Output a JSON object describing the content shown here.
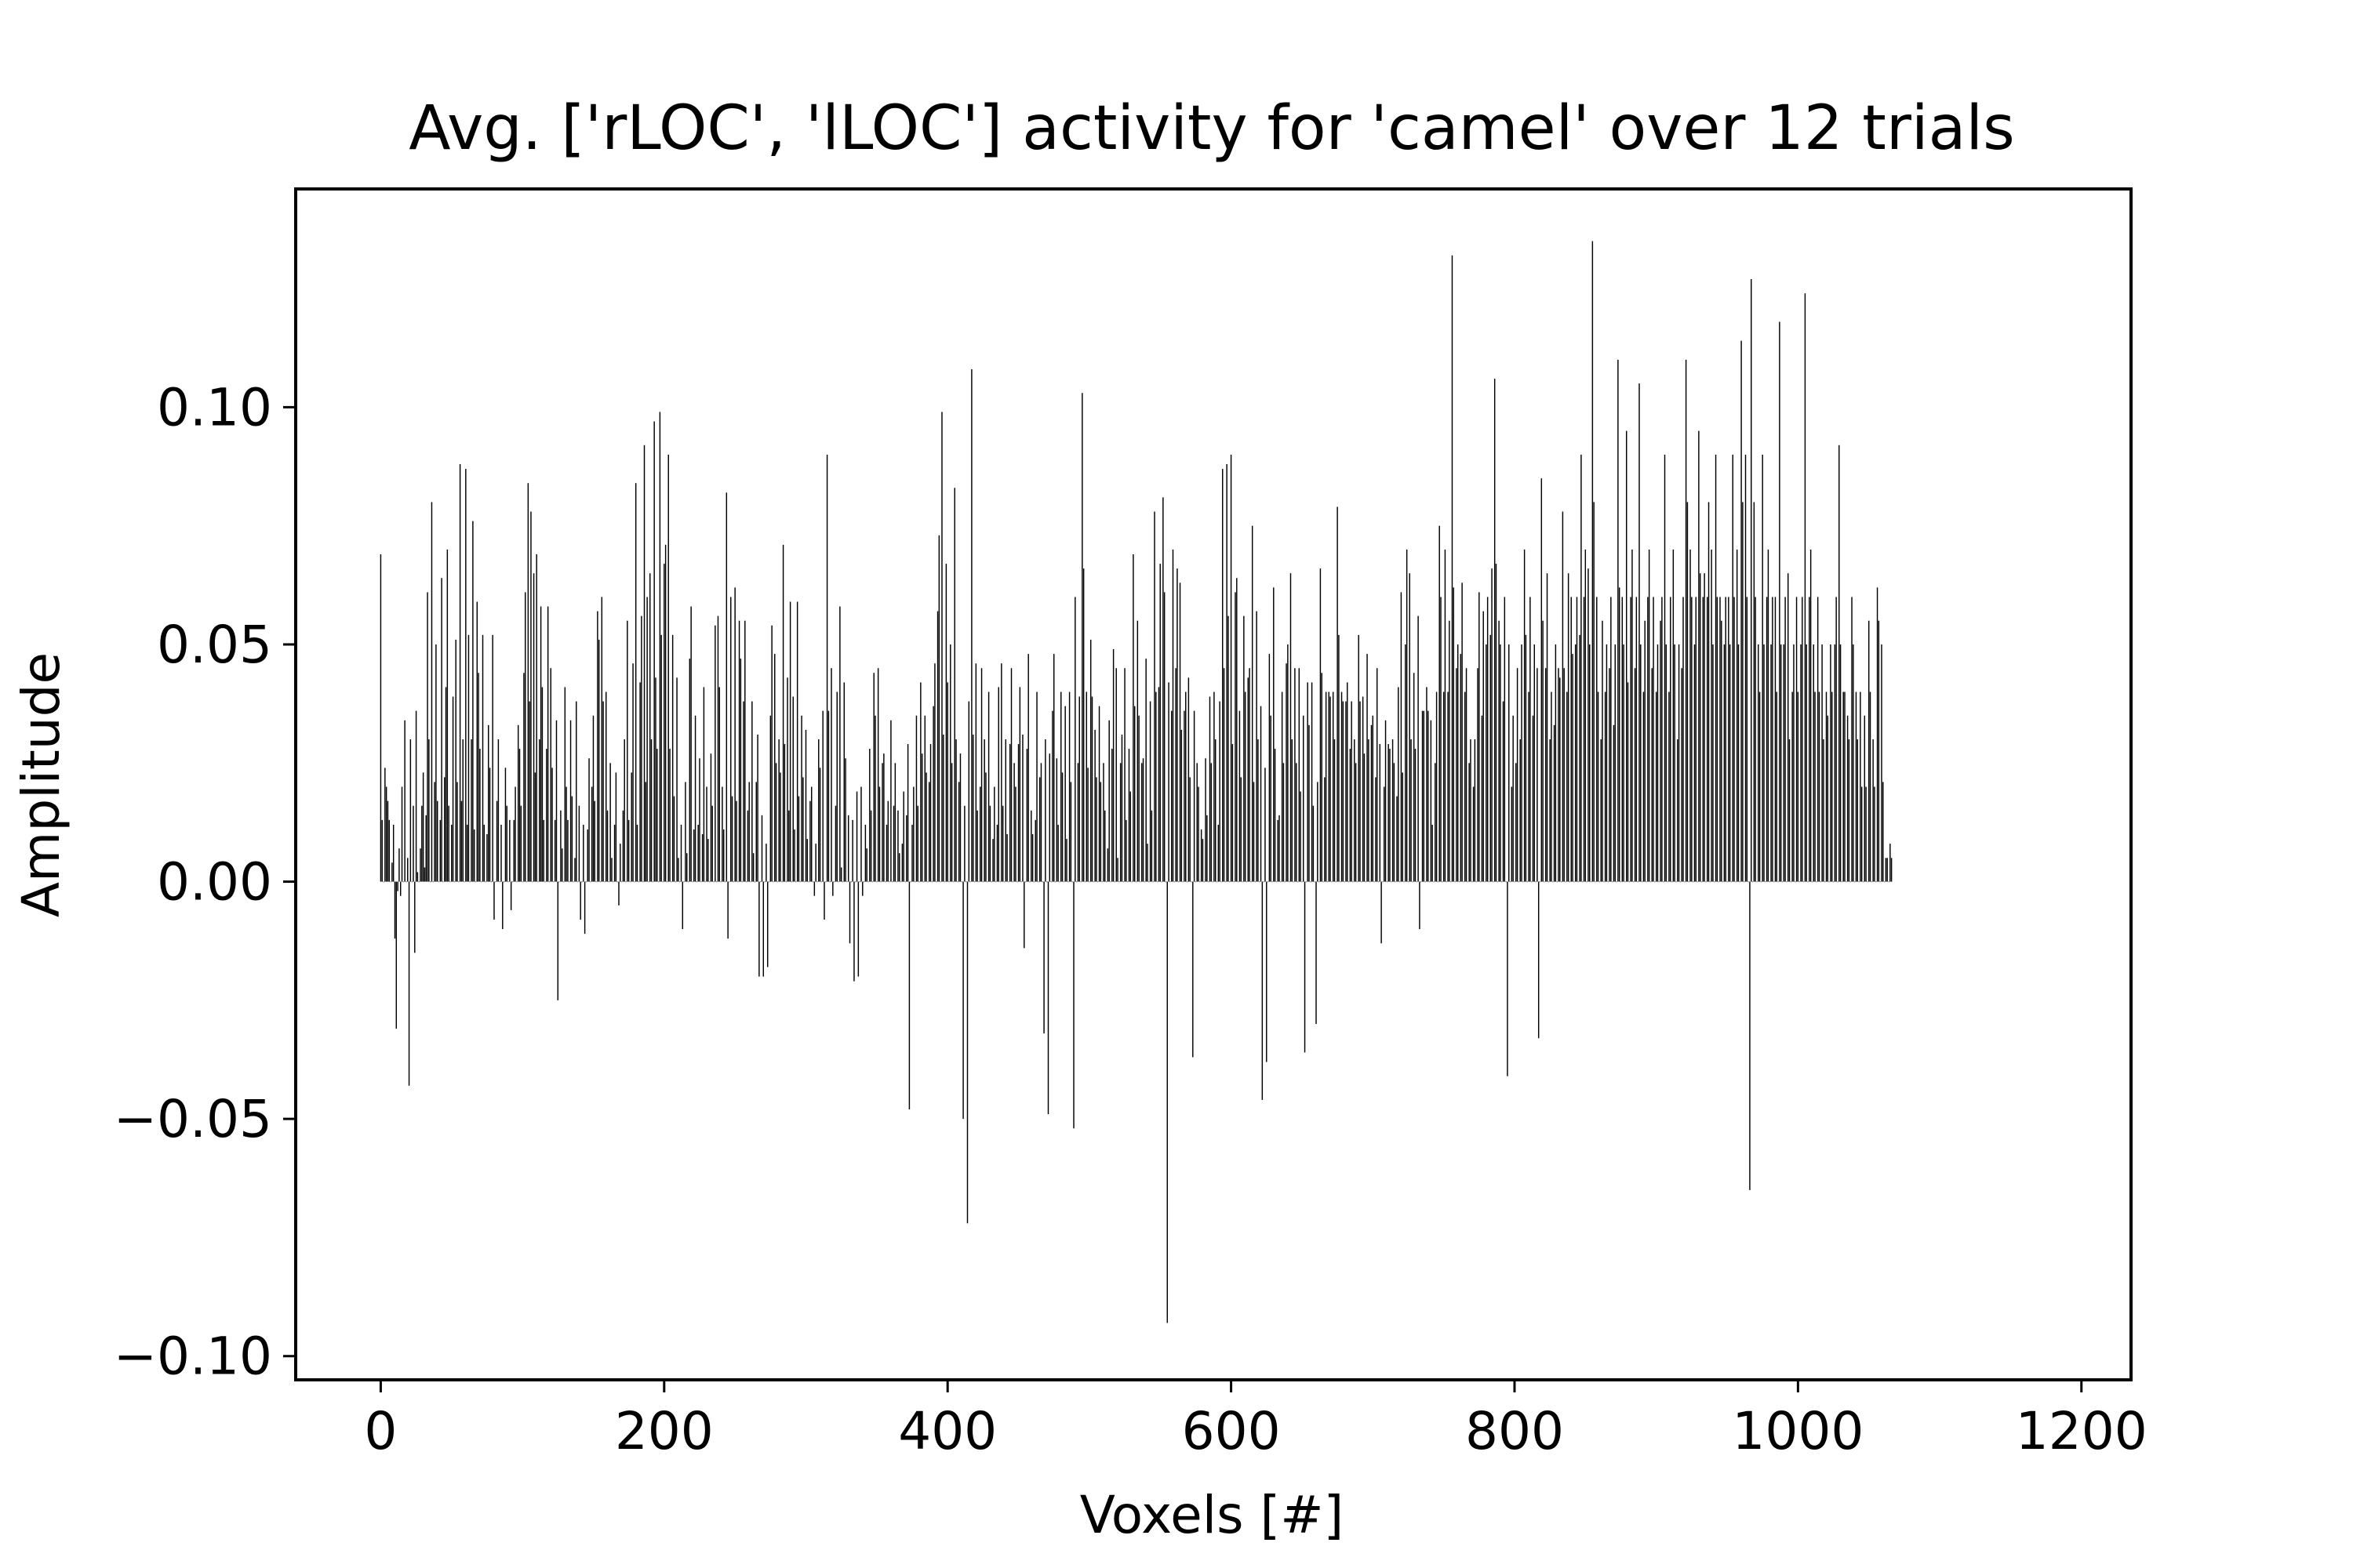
{
  "chart_data": {
    "type": "bar",
    "title": "Avg. ['rLOC', 'lLOC'] activity for 'camel' over 12 trials",
    "xlabel": "Voxels [#]",
    "ylabel": "Amplitude",
    "xlim": [
      -60,
      1235
    ],
    "ylim": [
      -0.105,
      0.146
    ],
    "xticks": [
      0,
      200,
      400,
      600,
      800,
      1000,
      1200
    ],
    "xtick_labels": [
      "0",
      "200",
      "400",
      "600",
      "800",
      "1000",
      "1200"
    ],
    "yticks": [
      -0.1,
      -0.05,
      0.0,
      0.05,
      0.1
    ],
    "ytick_labels": [
      "−0.10",
      "−0.05",
      "0.00",
      "0.05",
      "0.10"
    ],
    "grid": false,
    "legend": "none",
    "bar_color": "#000000",
    "n_bars": 1176,
    "values": [
      0.069,
      0.013,
      0.0,
      0.024,
      0.02,
      0.017,
      0.013,
      0.0,
      0.004,
      0.012,
      -0.012,
      -0.031,
      -0.002,
      0.007,
      -0.003,
      0.02,
      0.0,
      0.034,
      0.0,
      0.005,
      -0.043,
      0.03,
      0.0,
      0.016,
      -0.015,
      0.036,
      0.002,
      0.0,
      0.007,
      0.016,
      0.023,
      0.003,
      0.014,
      0.061,
      0.03,
      0.0,
      0.08,
      0.0,
      0.021,
      0.05,
      0.017,
      0.0,
      0.013,
      0.064,
      0.0,
      0.022,
      0.041,
      0.07,
      0.016,
      0.0,
      0.012,
      0.039,
      0.0,
      0.051,
      0.021,
      0.0,
      0.088,
      0.017,
      0.03,
      0.0,
      0.087,
      0.012,
      0.052,
      0.0,
      0.03,
      0.076,
      0.011,
      0.0,
      0.059,
      0.044,
      0.028,
      0.0,
      0.052,
      0.012,
      0.0,
      0.01,
      0.033,
      0.024,
      0.0,
      0.052,
      -0.008,
      0.0,
      0.017,
      0.03,
      0.0,
      0.012,
      -0.01,
      0.0,
      0.024,
      0.016,
      0.0,
      0.013,
      -0.006,
      0.0,
      0.013,
      0.02,
      0.0,
      0.033,
      0.028,
      0.016,
      0.0,
      0.044,
      0.061,
      0.0,
      0.084,
      0.038,
      0.078,
      0.0,
      0.065,
      0.023,
      0.069,
      0.0,
      0.03,
      0.058,
      0.041,
      0.013,
      0.0,
      0.028,
      0.058,
      0.0,
      0.045,
      0.024,
      0.0,
      0.013,
      0.034,
      -0.025,
      0.0,
      0.015,
      0.007,
      0.0,
      0.041,
      0.02,
      0.013,
      0.0,
      0.034,
      0.018,
      0.0,
      0.005,
      0.038,
      0.0,
      0.016,
      -0.008,
      0.0,
      0.012,
      -0.011,
      0.0,
      0.011,
      0.026,
      0.0,
      0.02,
      0.035,
      0.017,
      0.0,
      0.057,
      0.051,
      0.0,
      0.06,
      0.038,
      0.0,
      0.04,
      0.015,
      0.0,
      0.025,
      0.005,
      0.0,
      0.012,
      0.023,
      0.0,
      -0.005,
      0.008,
      0.0,
      0.015,
      0.03,
      0.0,
      0.055,
      0.013,
      0.0,
      0.023,
      0.046,
      0.0,
      0.084,
      0.012,
      0.0,
      0.042,
      0.056,
      0.0,
      0.092,
      0.021,
      0.06,
      0.0,
      0.065,
      0.03,
      0.0,
      0.097,
      0.043,
      0.028,
      0.0,
      0.099,
      0.052,
      0.0,
      0.067,
      0.071,
      0.0,
      0.09,
      0.028,
      0.0,
      0.052,
      0.018,
      0.0,
      0.043,
      0.005,
      0.0,
      0.012,
      -0.01,
      0.0,
      0.021,
      0.006,
      0.0,
      0.047,
      0.058,
      0.0,
      0.011,
      0.035,
      0.0,
      0.012,
      0.026,
      0.0,
      0.01,
      0.041,
      0.0,
      0.02,
      0.009,
      0.0,
      0.027,
      0.016,
      0.0,
      0.054,
      0.0,
      0.056,
      0.041,
      0.0,
      0.02,
      0.011,
      0.0,
      0.082,
      -0.012,
      0.0,
      0.06,
      0.018,
      0.0,
      0.062,
      0.017,
      0.0,
      0.055,
      0.047,
      0.0,
      0.038,
      0.055,
      0.0,
      0.015,
      0.021,
      0.0,
      0.038,
      0.006,
      0.0,
      0.021,
      0.031,
      -0.02,
      0.0,
      0.014,
      -0.02,
      0.0,
      0.008,
      -0.018,
      0.0,
      0.035,
      0.054,
      0.0,
      0.048,
      0.025,
      0.0,
      0.03,
      0.023,
      0.0,
      0.071,
      0.029,
      0.0,
      0.043,
      0.015,
      0.059,
      0.0,
      0.039,
      0.011,
      0.0,
      0.059,
      0.018,
      0.0,
      0.035,
      0.022,
      0.0,
      0.032,
      0.009,
      0.0,
      0.017,
      0.02,
      0.0,
      -0.003,
      0.008,
      0.0,
      0.03,
      0.024,
      0.0,
      0.036,
      -0.008,
      0.0,
      0.09,
      0.036,
      0.0,
      0.045,
      -0.003,
      0.0,
      0.016,
      0.04,
      0.0,
      0.058,
      0.003,
      0.0,
      0.042,
      0.026,
      0.0,
      0.014,
      -0.013,
      0.0,
      0.013,
      -0.021,
      0.0,
      0.019,
      -0.02,
      0.0,
      0.02,
      -0.003,
      0.0,
      0.012,
      0.007,
      0.0,
      0.028,
      0.015,
      0.0,
      0.044,
      0.035,
      0.0,
      0.045,
      0.02,
      0.0,
      0.025,
      0.027,
      0.0,
      0.012,
      0.017,
      0.0,
      0.034,
      0.0,
      0.016,
      0.025,
      0.0,
      0.015,
      0.006,
      0.0,
      0.008,
      0.019,
      0.0,
      0.014,
      0.029,
      -0.048,
      0.0,
      0.012,
      0.02,
      0.0,
      0.035,
      0.016,
      0.0,
      0.042,
      0.027,
      0.0,
      0.035,
      0.023,
      0.0,
      0.021,
      0.029,
      0.0,
      0.037,
      0.046,
      0.0,
      0.057,
      0.073,
      0.0,
      0.099,
      0.031,
      0.0,
      0.067,
      0.042,
      0.0,
      0.05,
      0.025,
      0.0,
      0.083,
      0.03,
      0.0,
      0.021,
      0.027,
      0.0,
      -0.05,
      0.016,
      0.0,
      -0.072,
      0.038,
      0.0,
      0.108,
      0.031,
      0.0,
      0.046,
      0.015,
      0.0,
      0.02,
      0.045,
      0.0,
      0.03,
      0.023,
      0.0,
      0.04,
      0.016,
      0.0,
      0.009,
      0.02,
      0.0,
      0.012,
      0.041,
      0.0,
      0.046,
      0.016,
      0.0,
      0.03,
      0.01,
      0.0,
      0.029,
      0.045,
      0.0,
      0.025,
      0.02,
      0.0,
      0.029,
      0.041,
      0.0,
      0.031,
      -0.014,
      0.0,
      0.028,
      0.048,
      0.0,
      0.015,
      0.01,
      0.0,
      0.013,
      0.04,
      0.0,
      0.022,
      0.025,
      0.0,
      -0.032,
      0.03,
      0.0,
      -0.049,
      0.027,
      0.0,
      0.036,
      0.048,
      0.0,
      0.026,
      0.012,
      0.0,
      0.04,
      0.023,
      0.0,
      0.037,
      0.009,
      0.0,
      0.04,
      0.021,
      0.0,
      -0.052,
      0.06,
      0.0,
      0.025,
      0.039,
      0.0,
      0.103,
      0.066,
      0.0,
      0.04,
      0.024,
      0.0,
      0.051,
      0.039,
      0.0,
      0.032,
      0.022,
      0.0,
      0.037,
      0.021,
      0.0,
      0.025,
      0.015,
      0.0,
      0.007,
      0.034,
      0.0,
      0.028,
      0.049,
      0.0,
      0.045,
      0.005,
      0.0,
      0.025,
      0.031,
      0.0,
      0.045,
      0.013,
      0.0,
      0.028,
      0.019,
      0.0,
      0.069,
      0.037,
      0.0,
      0.055,
      0.035,
      0.0,
      0.025,
      0.026,
      0.0,
      0.047,
      0.008,
      0.0,
      0.038,
      0.015,
      0.0,
      0.078,
      0.04,
      0.0,
      0.041,
      0.067,
      0.0,
      0.081,
      0.061,
      0.0,
      -0.093,
      0.042,
      0.0,
      0.036,
      0.07,
      0.0,
      0.045,
      0.066,
      0.0,
      0.063,
      0.032,
      0.0,
      0.036,
      0.04,
      0.0,
      0.043,
      0.022,
      0.0,
      -0.037,
      0.036,
      0.0,
      0.025,
      0.02,
      0.0,
      0.011,
      0.009,
      0.0,
      0.026,
      0.014,
      0.0,
      0.039,
      0.025,
      0.0,
      0.04,
      0.03,
      0.0,
      0.012,
      0.038,
      0.0,
      0.087,
      0.045,
      0.0,
      0.088,
      0.056,
      0.0,
      0.09,
      0.029,
      0.0,
      0.061,
      0.064,
      0.0,
      0.036,
      0.022,
      0.0,
      0.056,
      0.04,
      0.0,
      0.043,
      0.045,
      0.0,
      0.075,
      0.021,
      0.0,
      0.057,
      0.03,
      0.0,
      0.037,
      -0.046,
      0.0,
      0.024,
      -0.038,
      0.0,
      0.048,
      0.035,
      0.0,
      0.062,
      0.028,
      0.0,
      0.013,
      0.014,
      0.0,
      0.04,
      0.025,
      0.0,
      0.046,
      0.05,
      0.0,
      0.065,
      0.03,
      0.0,
      0.045,
      0.025,
      0.0,
      0.045,
      0.019,
      0.0,
      0.035,
      -0.036,
      0.0,
      0.042,
      0.033,
      0.0,
      0.042,
      0.016,
      0.0,
      -0.03,
      0.021,
      0.0,
      0.066,
      0.044,
      0.0,
      0.022,
      0.04,
      0.0,
      0.04,
      0.039,
      0.0,
      0.04,
      0.03,
      0.0,
      0.079,
      0.052,
      0.0,
      0.04,
      0.038,
      0.0,
      0.038,
      0.042,
      0.0,
      0.028,
      0.038,
      0.0,
      0.03,
      0.025,
      0.0,
      0.052,
      0.038,
      0.0,
      0.039,
      0.027,
      0.0,
      0.048,
      0.03,
      0.0,
      0.033,
      0.035,
      0.0,
      0.022,
      0.045,
      0.0,
      0.029,
      -0.013,
      0.0,
      0.02,
      0.034,
      0.0,
      0.029,
      0.028,
      0.0,
      0.03,
      0.025,
      0.0,
      0.018,
      0.041,
      0.0,
      0.061,
      0.023,
      0.0,
      0.05,
      0.07,
      0.0,
      0.065,
      0.03,
      0.0,
      0.044,
      0.028,
      0.0,
      0.056,
      -0.01,
      0.0,
      0.036,
      0.036,
      0.0,
      0.041,
      0.036,
      0.0,
      0.034,
      0.012,
      0.0,
      0.025,
      0.04,
      0.0,
      0.075,
      0.06,
      0.0,
      0.04,
      0.07,
      0.0,
      0.04,
      0.055,
      0.0,
      0.132,
      0.062,
      0.0,
      0.045,
      0.05,
      0.0,
      0.048,
      0.063,
      0.0,
      0.04,
      0.045,
      0.0,
      0.025,
      0.03,
      0.0,
      0.02,
      0.03,
      0.0,
      0.045,
      0.061,
      0.0,
      0.035,
      0.057,
      0.0,
      0.05,
      0.06,
      0.0,
      0.052,
      0.066,
      0.0,
      0.106,
      0.067,
      0.0,
      0.055,
      0.05,
      0.0,
      0.038,
      0.06,
      0.0,
      -0.041,
      0.05,
      0.0,
      0.02,
      0.035,
      0.0,
      0.025,
      0.045,
      0.0,
      0.03,
      0.05,
      0.0,
      0.07,
      0.052,
      0.0,
      0.04,
      0.06,
      0.0,
      0.035,
      0.05,
      0.0,
      0.045,
      -0.033,
      0.0,
      0.085,
      0.055,
      0.0,
      0.045,
      0.065,
      0.0,
      0.03,
      0.04,
      0.0,
      0.033,
      0.05,
      0.0,
      0.045,
      0.043,
      0.0,
      0.078,
      0.045,
      0.0,
      0.04,
      0.065,
      0.0,
      0.06,
      0.048,
      0.0,
      0.05,
      0.06,
      0.0,
      0.052,
      0.09,
      0.0,
      0.06,
      0.07,
      0.0,
      0.066,
      0.05,
      0.0,
      0.135,
      0.08,
      0.0,
      0.06,
      0.04,
      0.0,
      0.03,
      0.055,
      0.0,
      0.04,
      0.05,
      0.0,
      0.045,
      0.06,
      0.0,
      0.033,
      0.05,
      0.0,
      0.11,
      0.062,
      0.0,
      0.06,
      0.05,
      0.0,
      0.095,
      0.042,
      0.0,
      0.06,
      0.07,
      0.0,
      0.045,
      0.06,
      0.0,
      0.105,
      0.05,
      0.0,
      0.04,
      0.055,
      0.0,
      0.06,
      0.07,
      0.0,
      0.045,
      0.06,
      0.0,
      0.04,
      0.05,
      0.0,
      0.055,
      0.06,
      0.0,
      0.09,
      0.05,
      0.0,
      0.04,
      0.06,
      0.0,
      0.07,
      0.05,
      0.0,
      0.03,
      0.05,
      0.0,
      0.045,
      0.06,
      0.0,
      0.11,
      0.08,
      0.0,
      0.07,
      0.06,
      0.0,
      0.05,
      0.06,
      0.0,
      0.095,
      0.065,
      0.0,
      0.06,
      0.065,
      0.0,
      0.06,
      0.08,
      0.0,
      0.07,
      0.05,
      0.0,
      0.09,
      0.06,
      0.0,
      0.06,
      0.055,
      0.0,
      0.05,
      0.06,
      0.0,
      0.06,
      0.05,
      0.0,
      0.09,
      0.06,
      0.0,
      0.07,
      0.05,
      0.0,
      0.114,
      0.08,
      0.0,
      0.09,
      0.06,
      0.0,
      -0.065,
      0.127,
      0.0,
      0.08,
      0.06,
      0.0,
      0.05,
      0.04,
      0.0,
      0.09,
      0.05,
      0.0,
      0.06,
      0.07,
      0.0,
      0.05,
      0.06,
      0.0,
      0.06,
      0.04,
      0.0,
      0.118,
      0.05,
      0.0,
      0.05,
      0.06,
      0.0,
      0.065,
      0.03,
      0.0,
      0.04,
      0.05,
      0.0,
      0.06,
      0.04,
      0.0,
      0.05,
      0.06,
      0.0,
      0.124,
      0.05,
      0.0,
      0.06,
      0.07,
      0.0,
      0.05,
      0.04,
      0.0,
      0.06,
      0.04,
      0.0,
      0.05,
      0.03,
      0.0,
      0.04,
      0.035,
      0.0,
      0.05,
      0.04,
      0.0,
      0.05,
      0.06,
      0.0,
      0.092,
      0.05,
      0.0,
      0.04,
      0.04,
      0.0,
      0.035,
      0.03,
      0.0,
      0.06,
      0.05,
      0.0,
      0.04,
      0.03,
      0.0,
      0.04,
      0.02,
      0.0,
      0.035,
      0.02,
      0.0,
      0.055,
      0.04,
      0.0,
      0.03,
      0.02,
      0.0,
      0.062,
      0.055,
      0.0,
      0.05,
      0.021,
      0.0,
      0.005,
      0.005,
      0.0,
      0.008,
      0.005
    ]
  }
}
